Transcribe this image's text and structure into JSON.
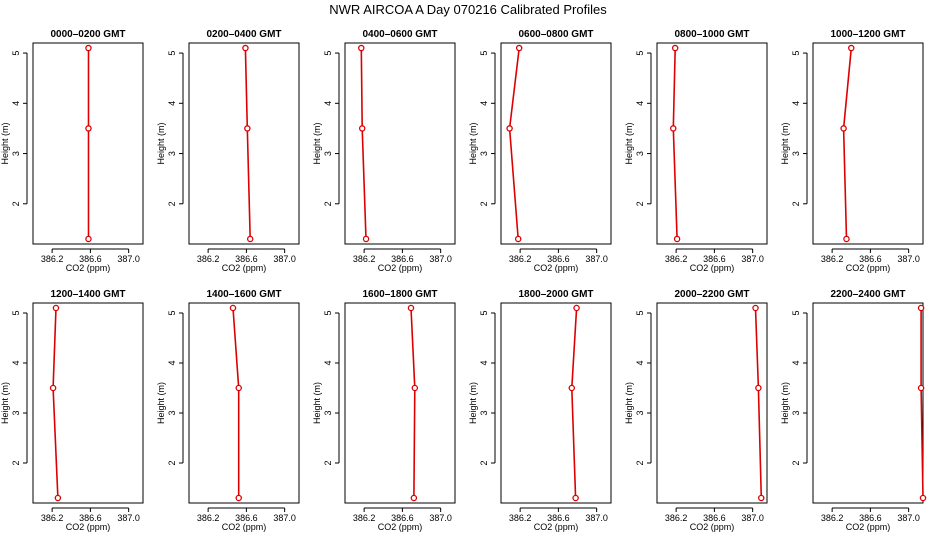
{
  "figure": {
    "title": "NWR AIRCOA A  Day 070216  Calibrated Profiles",
    "series_color": "#dd0000",
    "axis_color": "#000000"
  },
  "chart_data": [
    {
      "type": "line",
      "title": "0000–0200 GMT",
      "xlabel": "CO2 (ppm)",
      "ylabel": "Height (m)",
      "xlim": [
        386.0,
        387.15
      ],
      "ylim": [
        1.2,
        5.2
      ],
      "xticks": [
        "386.2",
        "386.6",
        "387.0"
      ],
      "yticks": [
        "2",
        "3",
        "4",
        "5"
      ],
      "grid": false,
      "x": [
        386.58,
        386.58,
        386.58
      ],
      "y": [
        1.3,
        3.5,
        5.1
      ]
    },
    {
      "type": "line",
      "title": "0200–0400 GMT",
      "xlabel": "CO2 (ppm)",
      "ylabel": "Height (m)",
      "xlim": [
        386.0,
        387.15
      ],
      "ylim": [
        1.2,
        5.2
      ],
      "xticks": [
        "386.2",
        "386.6",
        "387.0"
      ],
      "yticks": [
        "2",
        "3",
        "4",
        "5"
      ],
      "grid": false,
      "x": [
        386.64,
        386.61,
        386.59
      ],
      "y": [
        1.3,
        3.5,
        5.1
      ]
    },
    {
      "type": "line",
      "title": "0400–0600 GMT",
      "xlabel": "CO2 (ppm)",
      "ylabel": "Height (m)",
      "xlim": [
        386.0,
        387.15
      ],
      "ylim": [
        1.2,
        5.2
      ],
      "xticks": [
        "386.2",
        "386.6",
        "387.0"
      ],
      "yticks": [
        "2",
        "3",
        "4",
        "5"
      ],
      "grid": false,
      "x": [
        386.22,
        386.18,
        386.17
      ],
      "y": [
        1.3,
        3.5,
        5.1
      ]
    },
    {
      "type": "line",
      "title": "0600–0800 GMT",
      "xlabel": "CO2 (ppm)",
      "ylabel": "Height (m)",
      "xlim": [
        386.0,
        387.15
      ],
      "ylim": [
        1.2,
        5.2
      ],
      "xticks": [
        "386.2",
        "386.6",
        "387.0"
      ],
      "yticks": [
        "2",
        "3",
        "4",
        "5"
      ],
      "grid": false,
      "x": [
        386.18,
        386.09,
        386.19
      ],
      "y": [
        1.3,
        3.5,
        5.1
      ]
    },
    {
      "type": "line",
      "title": "0800–1000 GMT",
      "xlabel": "CO2 (ppm)",
      "ylabel": "Height (m)",
      "xlim": [
        386.0,
        387.15
      ],
      "ylim": [
        1.2,
        5.2
      ],
      "xticks": [
        "386.2",
        "386.6",
        "387.0"
      ],
      "yticks": [
        "2",
        "3",
        "4",
        "5"
      ],
      "grid": false,
      "x": [
        386.21,
        386.17,
        386.19
      ],
      "y": [
        1.3,
        3.5,
        5.1
      ]
    },
    {
      "type": "line",
      "title": "1000–1200 GMT",
      "xlabel": "CO2 (ppm)",
      "ylabel": "Height (m)",
      "xlim": [
        386.0,
        387.15
      ],
      "ylim": [
        1.2,
        5.2
      ],
      "xticks": [
        "386.2",
        "386.6",
        "387.0"
      ],
      "yticks": [
        "2",
        "3",
        "4",
        "5"
      ],
      "grid": false,
      "x": [
        386.35,
        386.32,
        386.4
      ],
      "y": [
        1.3,
        3.5,
        5.1
      ]
    },
    {
      "type": "line",
      "title": "1200–1400 GMT",
      "xlabel": "CO2 (ppm)",
      "ylabel": "Height (m)",
      "xlim": [
        386.0,
        387.15
      ],
      "ylim": [
        1.2,
        5.2
      ],
      "xticks": [
        "386.2",
        "386.6",
        "387.0"
      ],
      "yticks": [
        "2",
        "3",
        "4",
        "5"
      ],
      "grid": false,
      "x": [
        386.26,
        386.21,
        386.24
      ],
      "y": [
        1.3,
        3.5,
        5.1
      ]
    },
    {
      "type": "line",
      "title": "1400–1600 GMT",
      "xlabel": "CO2 (ppm)",
      "ylabel": "Height (m)",
      "xlim": [
        386.0,
        387.15
      ],
      "ylim": [
        1.2,
        5.2
      ],
      "xticks": [
        "386.2",
        "386.6",
        "387.0"
      ],
      "yticks": [
        "2",
        "3",
        "4",
        "5"
      ],
      "grid": false,
      "x": [
        386.52,
        386.52,
        386.46
      ],
      "y": [
        1.3,
        3.5,
        5.1
      ]
    },
    {
      "type": "line",
      "title": "1600–1800 GMT",
      "xlabel": "CO2 (ppm)",
      "ylabel": "Height (m)",
      "xlim": [
        386.0,
        387.15
      ],
      "ylim": [
        1.2,
        5.2
      ],
      "xticks": [
        "386.2",
        "386.6",
        "387.0"
      ],
      "yticks": [
        "2",
        "3",
        "4",
        "5"
      ],
      "grid": false,
      "x": [
        386.72,
        386.73,
        386.69
      ],
      "y": [
        1.3,
        3.5,
        5.1
      ]
    },
    {
      "type": "line",
      "title": "1800–2000 GMT",
      "xlabel": "CO2 (ppm)",
      "ylabel": "Height (m)",
      "xlim": [
        386.0,
        387.15
      ],
      "ylim": [
        1.2,
        5.2
      ],
      "xticks": [
        "386.2",
        "386.6",
        "387.0"
      ],
      "yticks": [
        "2",
        "3",
        "4",
        "5"
      ],
      "grid": false,
      "x": [
        386.78,
        386.74,
        386.79
      ],
      "y": [
        1.3,
        3.5,
        5.1
      ]
    },
    {
      "type": "line",
      "title": "2000–2200 GMT",
      "xlabel": "CO2 (ppm)",
      "ylabel": "Height (m)",
      "xlim": [
        386.0,
        387.15
      ],
      "ylim": [
        1.2,
        5.2
      ],
      "xticks": [
        "386.2",
        "386.6",
        "387.0"
      ],
      "yticks": [
        "2",
        "3",
        "4",
        "5"
      ],
      "grid": false,
      "x": [
        387.09,
        387.06,
        387.03
      ],
      "y": [
        1.3,
        3.5,
        5.1
      ]
    },
    {
      "type": "line",
      "title": "2200–2400 GMT",
      "xlabel": "CO2 (ppm)",
      "ylabel": "Height (m)",
      "xlim": [
        386.0,
        387.15
      ],
      "ylim": [
        1.2,
        5.2
      ],
      "xticks": [
        "386.2",
        "386.6",
        "387.0"
      ],
      "yticks": [
        "2",
        "3",
        "4",
        "5"
      ],
      "grid": false,
      "x": [
        387.15,
        387.13,
        387.13
      ],
      "y": [
        1.3,
        3.5,
        5.1
      ]
    }
  ]
}
